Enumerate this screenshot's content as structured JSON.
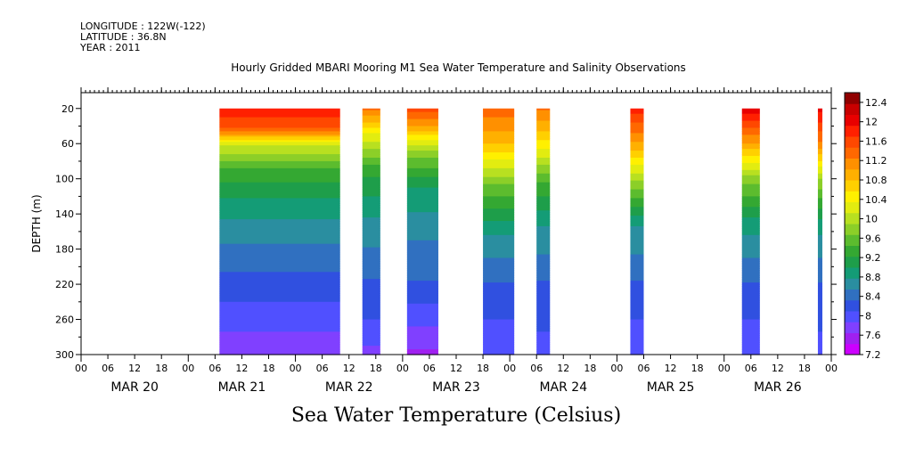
{
  "header": {
    "longitude": "LONGITUDE : 122W(-122)",
    "latitude": "LATITUDE : 36.8N",
    "year": "YEAR : 2011"
  },
  "chart_data": {
    "type": "heatmap",
    "title": "Hourly Gridded MBARI Mooring M1 Sea Water Temperature and Salinity Observations",
    "subtitle": "Sea Water Temperature (Celsius)",
    "ylabel": "DEPTH (m)",
    "xlabel": "",
    "x_hour_ticks": [
      "00",
      "06",
      "12",
      "18",
      "00",
      "06",
      "12",
      "18",
      "00",
      "06",
      "12",
      "18",
      "00",
      "06",
      "12",
      "18",
      "00",
      "06",
      "12",
      "18",
      "00",
      "06",
      "12",
      "18",
      "00",
      "06",
      "12",
      "18",
      "00"
    ],
    "x_day_labels": [
      "MAR 20",
      "MAR 21",
      "MAR 22",
      "MAR 23",
      "MAR 24",
      "MAR 25",
      "MAR 26"
    ],
    "y_ticks": [
      "20",
      "60",
      "100",
      "140",
      "180",
      "220",
      "260",
      "300"
    ],
    "y_tick_values": [
      20,
      60,
      100,
      140,
      180,
      220,
      260,
      300
    ],
    "ylim": [
      300,
      2
    ],
    "x_range_hours": [
      0,
      168
    ],
    "colorbar_labels": [
      "12.4",
      "12",
      "11.6",
      "11.2",
      "10.8",
      "10.4",
      "10",
      "9.6",
      "9.2",
      "8.8",
      "8.4",
      "8",
      "7.6",
      "7.2"
    ],
    "colorbar_range": [
      7.2,
      12.6
    ],
    "colorbar_step": 0.2,
    "data_depth_range": [
      20,
      300
    ],
    "data_segments": [
      {
        "start_hour": 31,
        "end_hour": 58,
        "profile": [
          {
            "d": 20,
            "t": 11.9
          },
          {
            "d": 45,
            "t": 11.4
          },
          {
            "d": 60,
            "t": 10.2
          },
          {
            "d": 90,
            "t": 9.4
          },
          {
            "d": 130,
            "t": 8.9
          },
          {
            "d": 180,
            "t": 8.5
          },
          {
            "d": 240,
            "t": 8.1
          },
          {
            "d": 300,
            "t": 7.7
          }
        ]
      },
      {
        "start_hour": 63,
        "end_hour": 67,
        "profile": [
          {
            "d": 20,
            "t": 11.3
          },
          {
            "d": 50,
            "t": 10.3
          },
          {
            "d": 90,
            "t": 9.3
          },
          {
            "d": 140,
            "t": 8.8
          },
          {
            "d": 200,
            "t": 8.4
          },
          {
            "d": 260,
            "t": 8.1
          },
          {
            "d": 300,
            "t": 7.8
          }
        ]
      },
      {
        "start_hour": 73,
        "end_hour": 80,
        "profile": [
          {
            "d": 20,
            "t": 11.6
          },
          {
            "d": 40,
            "t": 11.0
          },
          {
            "d": 70,
            "t": 9.8
          },
          {
            "d": 110,
            "t": 9.0
          },
          {
            "d": 160,
            "t": 8.6
          },
          {
            "d": 220,
            "t": 8.3
          },
          {
            "d": 300,
            "t": 7.6
          }
        ]
      },
      {
        "start_hour": 90,
        "end_hour": 97,
        "profile": [
          {
            "d": 20,
            "t": 11.4
          },
          {
            "d": 60,
            "t": 10.8
          },
          {
            "d": 110,
            "t": 9.6
          },
          {
            "d": 160,
            "t": 8.8
          },
          {
            "d": 220,
            "t": 8.3
          },
          {
            "d": 280,
            "t": 8.0
          },
          {
            "d": 300,
            "t": 7.9
          }
        ]
      },
      {
        "start_hour": 102,
        "end_hour": 105,
        "profile": [
          {
            "d": 20,
            "t": 11.3
          },
          {
            "d": 60,
            "t": 10.5
          },
          {
            "d": 100,
            "t": 9.5
          },
          {
            "d": 150,
            "t": 8.8
          },
          {
            "d": 220,
            "t": 8.3
          },
          {
            "d": 300,
            "t": 8.0
          }
        ]
      },
      {
        "start_hour": 123,
        "end_hour": 126,
        "profile": [
          {
            "d": 20,
            "t": 11.8
          },
          {
            "d": 60,
            "t": 11.0
          },
          {
            "d": 110,
            "t": 9.7
          },
          {
            "d": 150,
            "t": 8.8
          },
          {
            "d": 220,
            "t": 8.3
          },
          {
            "d": 300,
            "t": 7.9
          }
        ]
      },
      {
        "start_hour": 148,
        "end_hour": 152,
        "profile": [
          {
            "d": 20,
            "t": 12.1
          },
          {
            "d": 60,
            "t": 11.0
          },
          {
            "d": 100,
            "t": 9.8
          },
          {
            "d": 150,
            "t": 8.9
          },
          {
            "d": 220,
            "t": 8.3
          },
          {
            "d": 300,
            "t": 7.9
          }
        ]
      },
      {
        "start_hour": 165,
        "end_hour": 166,
        "profile": [
          {
            "d": 20,
            "t": 12.0
          },
          {
            "d": 60,
            "t": 11.2
          },
          {
            "d": 100,
            "t": 9.9
          },
          {
            "d": 150,
            "t": 8.9
          },
          {
            "d": 220,
            "t": 8.3
          },
          {
            "d": 300,
            "t": 8.0
          }
        ]
      }
    ],
    "grid": false
  }
}
